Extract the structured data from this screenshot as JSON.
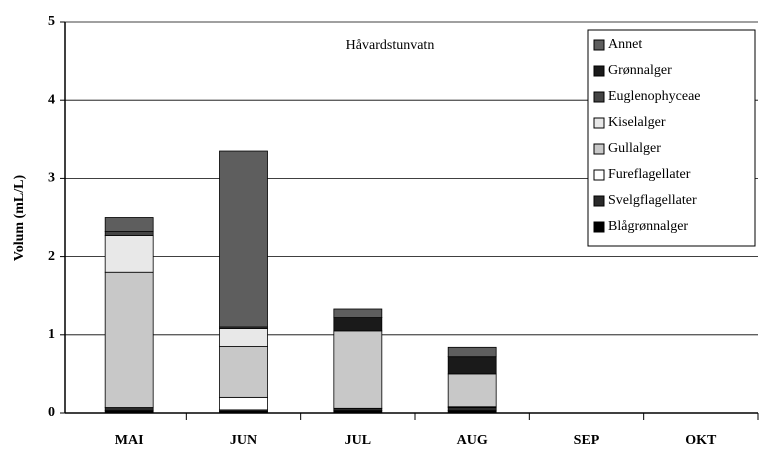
{
  "chart_data": {
    "type": "stacked_bar",
    "annotation": "Håvardstunvatn",
    "y_label": "Volum (mL/L)",
    "categories": [
      "MAI",
      "JUN",
      "JUL",
      "AUG",
      "SEP",
      "OKT"
    ],
    "series": [
      {
        "name": "Blågrønnalger",
        "color": "#000000",
        "values": [
          0.03,
          0.02,
          0.03,
          0.03,
          null,
          null
        ]
      },
      {
        "name": "Svelgflagellater",
        "color": "#2a2a2a",
        "values": [
          0.04,
          0.02,
          0.03,
          0.04,
          null,
          null
        ]
      },
      {
        "name": "Fureflagellater",
        "color": "#ffffff",
        "values": [
          0,
          0.16,
          0,
          0.01,
          null,
          null
        ]
      },
      {
        "name": "Gullalger",
        "color": "#c8c8c8",
        "values": [
          1.73,
          0.65,
          0.99,
          0.42,
          null,
          null
        ]
      },
      {
        "name": "Kiselalger",
        "color": "#e8e8e8",
        "values": [
          0.47,
          0.23,
          0,
          0,
          null,
          null
        ]
      },
      {
        "name": "Euglenophyceae",
        "color": "#444444",
        "values": [
          0.05,
          0.02,
          0,
          0,
          null,
          null
        ]
      },
      {
        "name": "Grønnalger",
        "color": "#1a1a1a",
        "values": [
          0,
          0,
          0.17,
          0.22,
          null,
          null
        ]
      },
      {
        "name": "Annet",
        "color": "#5e5e5e",
        "values": [
          0.18,
          2.25,
          0.11,
          0.12,
          null,
          null
        ]
      }
    ],
    "ylim": [
      0,
      5
    ],
    "yticks": [
      0,
      1,
      2,
      3,
      4,
      5
    ],
    "grid": true,
    "legend": "upper right"
  }
}
